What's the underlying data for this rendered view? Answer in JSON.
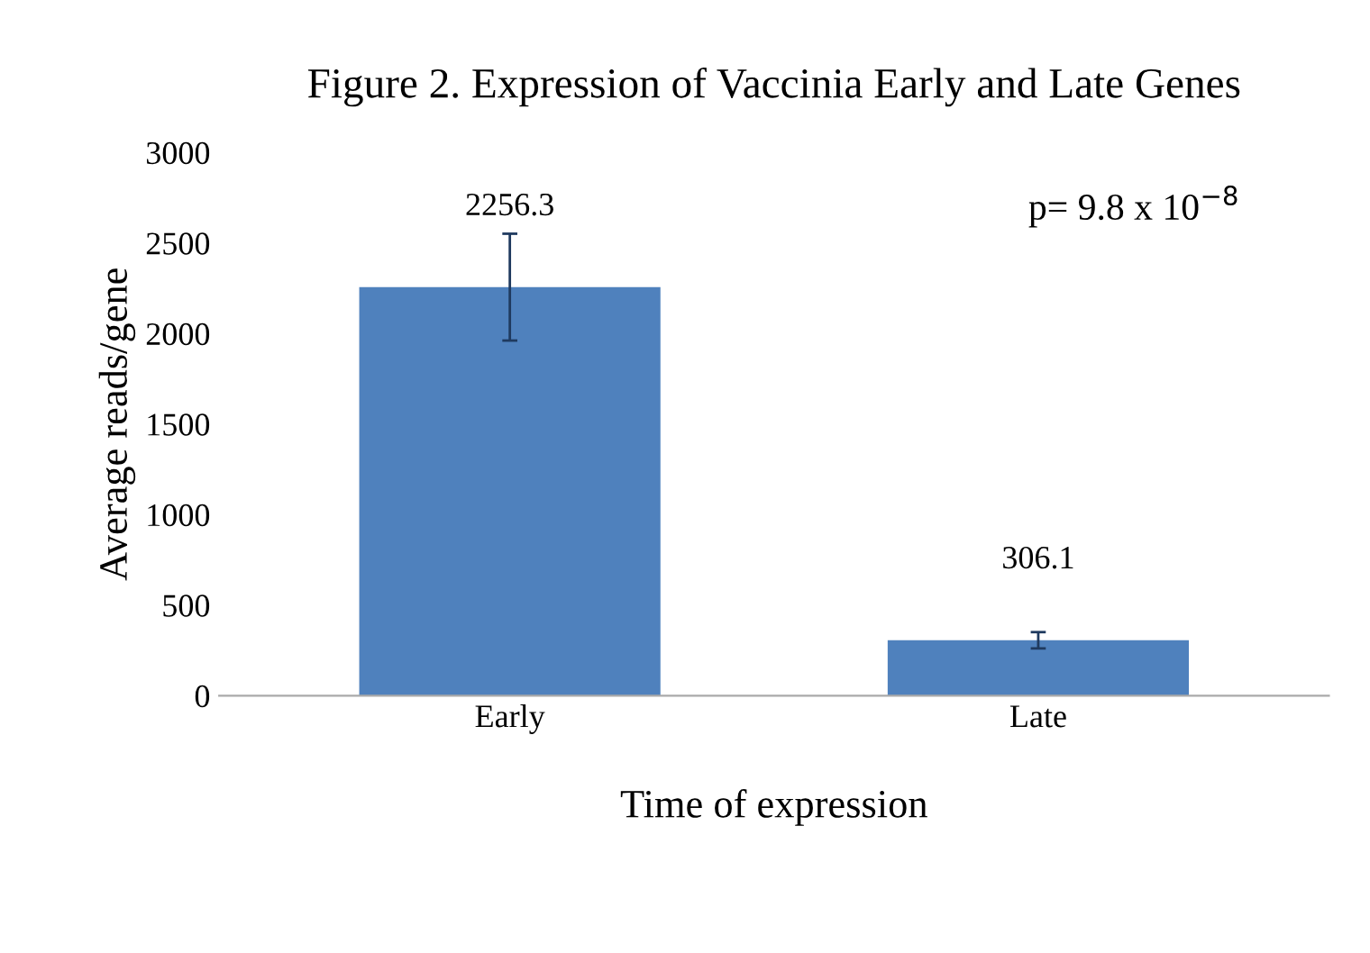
{
  "chart_data": {
    "type": "bar",
    "title": "Figure 2. Expression of Vaccinia Early and Late Genes",
    "xlabel": "Time of expression",
    "ylabel": "Average reads/gene",
    "categories": [
      "Early",
      "Late"
    ],
    "series": [
      {
        "color": "#4f81bd",
        "values": [
          2256.3,
          306.1
        ],
        "errors": [
          295,
          45
        ]
      }
    ],
    "data_labels": true,
    "ylim": [
      0,
      3000
    ],
    "yticks": [
      0,
      500,
      1000,
      1500,
      2000,
      2500,
      3000
    ],
    "grid": false,
    "legend": false,
    "annotations": [
      "p= 9.8 x 10$^{−8}$"
    ]
  }
}
